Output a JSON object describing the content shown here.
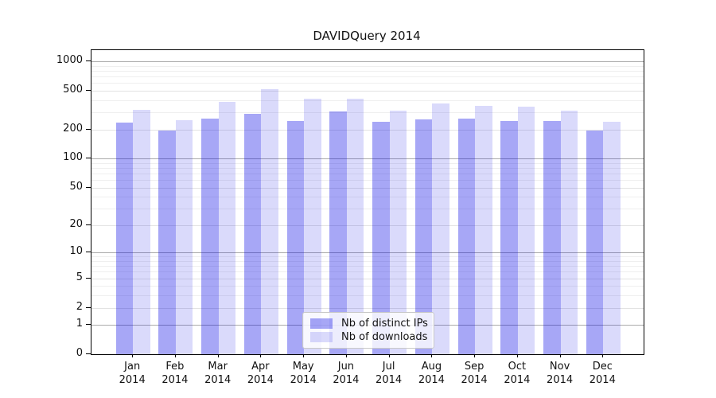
{
  "title": "DAVIDQuery 2014",
  "legend": {
    "items": [
      {
        "label": "Nb of distinct IPs",
        "color": "#a9a9f4"
      },
      {
        "label": "Nb of downloads",
        "color": "#dcdcfb"
      }
    ],
    "position": "lower center"
  },
  "axes": {
    "y_ticks": [
      0,
      1,
      2,
      5,
      10,
      20,
      50,
      100,
      200,
      500,
      1000
    ],
    "y_minor_gridlines": [
      3,
      4,
      6,
      7,
      8,
      9,
      30,
      40,
      60,
      70,
      80,
      90,
      300,
      400,
      600,
      700,
      800,
      900
    ],
    "x_months": [
      "Jan",
      "Feb",
      "Mar",
      "Apr",
      "May",
      "Jun",
      "Jul",
      "Aug",
      "Sep",
      "Oct",
      "Nov",
      "Dec"
    ],
    "x_year": "2014"
  },
  "chart_data": {
    "type": "bar",
    "title": "DAVIDQuery 2014",
    "xlabel": "",
    "ylabel": "",
    "yscale": "log-like (log10(1+y)), 0 at baseline",
    "ylim": [
      0,
      1300
    ],
    "grid": true,
    "legend_position": "lower center",
    "categories": [
      "Jan 2014",
      "Feb 2014",
      "Mar 2014",
      "Apr 2014",
      "May 2014",
      "Jun 2014",
      "Jul 2014",
      "Aug 2014",
      "Sep 2014",
      "Oct 2014",
      "Nov 2014",
      "Dec 2014"
    ],
    "series": [
      {
        "name": "Nb of distinct IPs",
        "color": "#a9a9f4",
        "values": [
          234,
          193,
          260,
          291,
          245,
          308,
          239,
          252,
          260,
          244,
          244,
          193
        ]
      },
      {
        "name": "Nb of downloads",
        "color": "#dcdcfb",
        "values": [
          320,
          249,
          386,
          515,
          416,
          411,
          312,
          367,
          349,
          340,
          313,
          241
        ]
      }
    ]
  }
}
